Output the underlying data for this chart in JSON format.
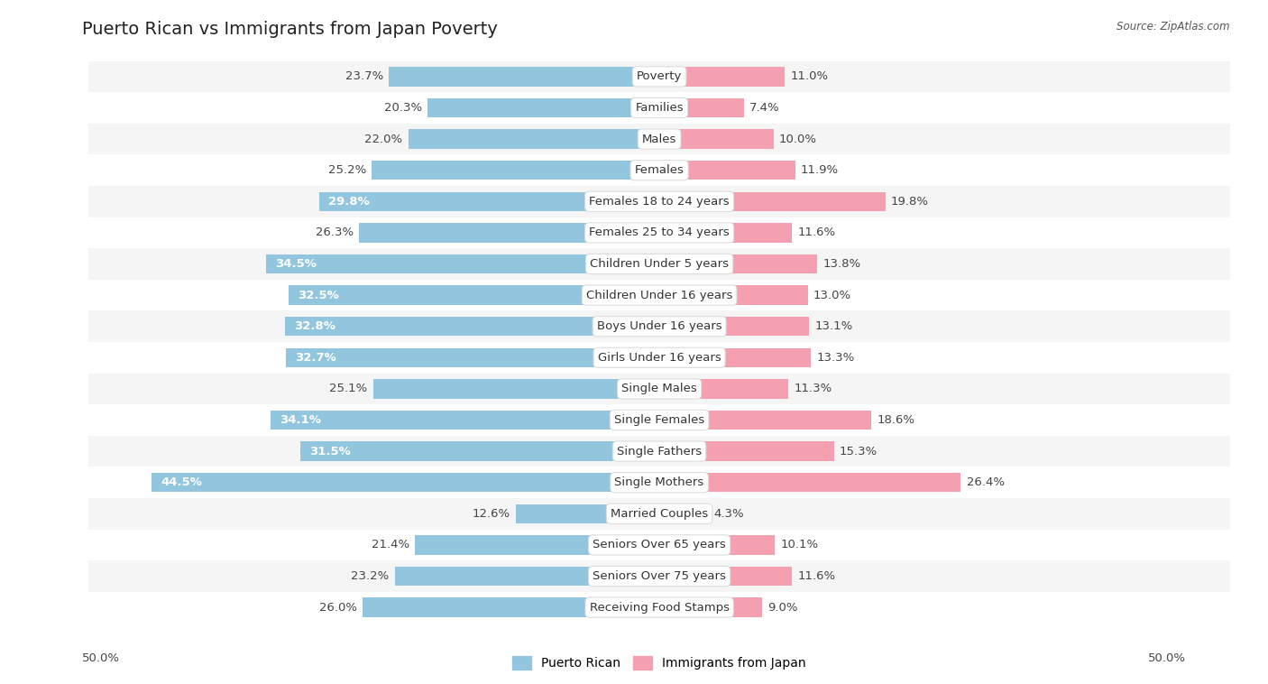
{
  "title": "Puerto Rican vs Immigrants from Japan Poverty",
  "source": "Source: ZipAtlas.com",
  "categories": [
    "Poverty",
    "Families",
    "Males",
    "Females",
    "Females 18 to 24 years",
    "Females 25 to 34 years",
    "Children Under 5 years",
    "Children Under 16 years",
    "Boys Under 16 years",
    "Girls Under 16 years",
    "Single Males",
    "Single Females",
    "Single Fathers",
    "Single Mothers",
    "Married Couples",
    "Seniors Over 65 years",
    "Seniors Over 75 years",
    "Receiving Food Stamps"
  ],
  "puerto_rican": [
    23.7,
    20.3,
    22.0,
    25.2,
    29.8,
    26.3,
    34.5,
    32.5,
    32.8,
    32.7,
    25.1,
    34.1,
    31.5,
    44.5,
    12.6,
    21.4,
    23.2,
    26.0
  ],
  "japan": [
    11.0,
    7.4,
    10.0,
    11.9,
    19.8,
    11.6,
    13.8,
    13.0,
    13.1,
    13.3,
    11.3,
    18.6,
    15.3,
    26.4,
    4.3,
    10.1,
    11.6,
    9.0
  ],
  "blue_color": "#92c5de",
  "pink_color": "#f4a0b0",
  "row_bg_even": "#f5f5f5",
  "row_bg_odd": "#ffffff",
  "axis_max": 50.0,
  "label_fontsize": 9.5,
  "title_fontsize": 14,
  "legend_blue": "Puerto Rican",
  "legend_pink": "Immigrants from Japan",
  "inside_label_threshold": 28.0
}
